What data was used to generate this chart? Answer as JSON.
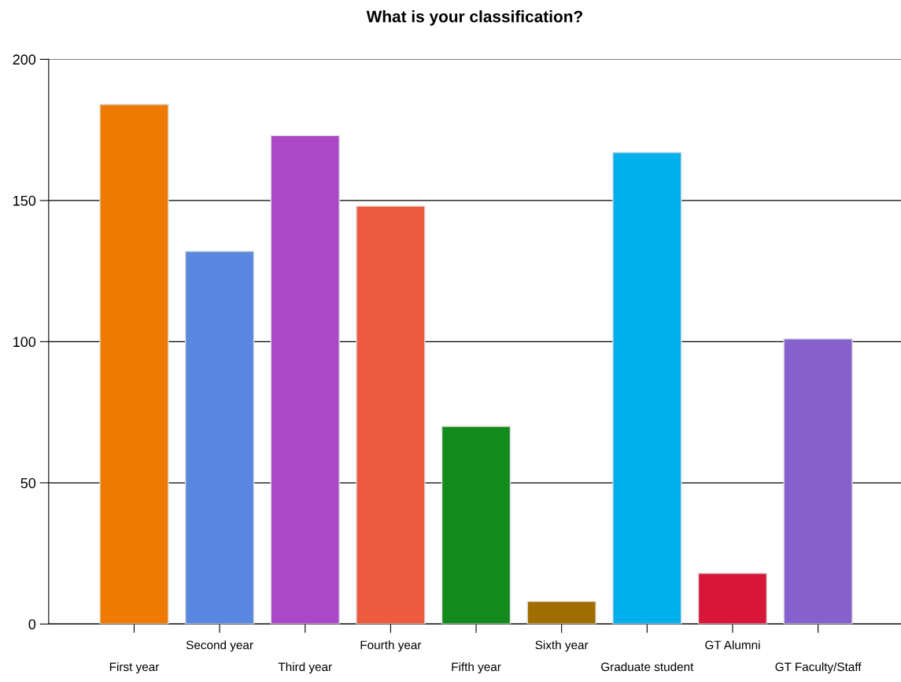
{
  "chart_data": {
    "type": "bar",
    "title": "What is your classification?",
    "categories": [
      "First year",
      "Second year",
      "Third year",
      "Fourth year",
      "Fifth year",
      "Sixth year",
      "Graduate student",
      "GT Alumni",
      "GT Faculty/Staff"
    ],
    "values": [
      184,
      132,
      173,
      148,
      70,
      8,
      167,
      18,
      101
    ],
    "colors": [
      "#ee7a00",
      "#5a88e0",
      "#aa48c8",
      "#ee5a3e",
      "#138a1c",
      "#a06e00",
      "#00afeb",
      "#d8163a",
      "#8660cc"
    ],
    "ylim": [
      0,
      200
    ],
    "yticks": [
      0,
      50,
      100,
      150,
      200
    ],
    "grid": "y"
  }
}
